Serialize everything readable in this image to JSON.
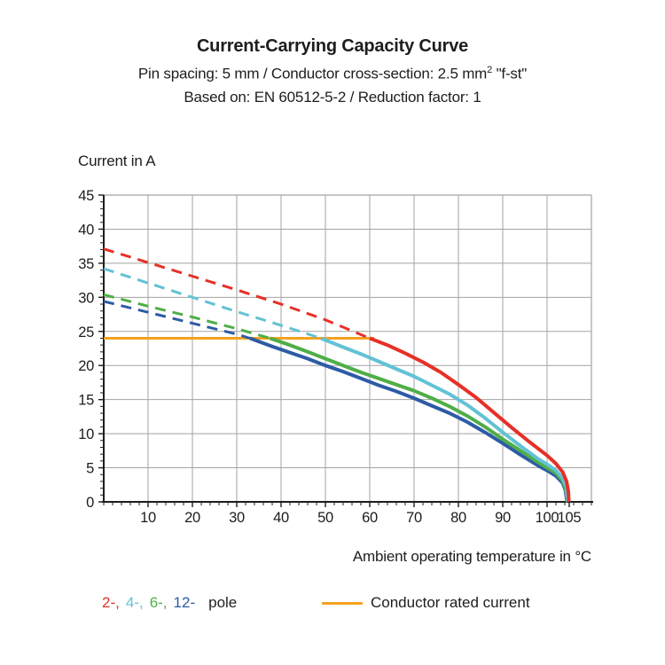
{
  "header": {
    "title": "Current-Carrying Capacity Curve",
    "subtitle_pre": "Pin spacing: 5 mm / Conductor cross-section: 2.5 mm",
    "subtitle_sup": "2",
    "subtitle_post": " \"f-st\"",
    "subtitle2": "Based on: EN 60512-5-2 / Reduction factor: 1"
  },
  "axes": {
    "ylabel": "Current in A",
    "xlabel": "Ambient operating temperature in °C"
  },
  "legend": {
    "pole_items": [
      {
        "label": "2-,",
        "color": "#e63027"
      },
      {
        "label": "4-,",
        "color": "#62c2d5"
      },
      {
        "label": "6-,",
        "color": "#4fae47"
      },
      {
        "label": "12-",
        "color": "#2d5ba6"
      }
    ],
    "pole_word": "pole",
    "rated_label": "Conductor rated current",
    "rated_color": "#f5a11f"
  },
  "chart_data": {
    "type": "line",
    "title": "Current-Carrying Capacity Curve",
    "xlabel": "Ambient operating temperature in °C",
    "ylabel": "Current in A",
    "xlim": [
      0,
      110
    ],
    "ylim": [
      0,
      45
    ],
    "x_major_ticks": [
      10,
      20,
      30,
      40,
      50,
      60,
      70,
      80,
      90,
      100,
      105
    ],
    "x_gridlines": [
      10,
      20,
      30,
      40,
      50,
      60,
      70,
      80,
      90,
      100
    ],
    "x_minor_step": 2,
    "y_major_ticks": [
      0,
      5,
      10,
      15,
      20,
      25,
      30,
      35,
      40,
      45
    ],
    "y_gridlines": [
      5,
      10,
      15,
      20,
      25,
      30,
      35,
      40
    ],
    "y_minor_step": 1,
    "grid_color": "#a3a3a3",
    "axis_color": "#1d1d1b",
    "legend_position": "bottom",
    "series": [
      {
        "name": "Conductor rated current",
        "color": "#f5a11f",
        "width": 3,
        "style": "solid",
        "points": [
          [
            0,
            24
          ],
          [
            61,
            24
          ]
        ]
      },
      {
        "name": "12-pole (dashed derating)",
        "color": "#2d5ba6",
        "width": 3,
        "style": "dashed",
        "points": [
          [
            0,
            29.4
          ],
          [
            10,
            27.8
          ],
          [
            20,
            26.2
          ],
          [
            30,
            24.6
          ],
          [
            33,
            24
          ]
        ]
      },
      {
        "name": "12-pole",
        "color": "#2d5ba6",
        "width": 4,
        "style": "solid",
        "points": [
          [
            33,
            24
          ],
          [
            38,
            22.8
          ],
          [
            42,
            21.9
          ],
          [
            46,
            21.0
          ],
          [
            50,
            20.0
          ],
          [
            54,
            19.1
          ],
          [
            58,
            18.1
          ],
          [
            62,
            17.1
          ],
          [
            66,
            16.2
          ],
          [
            70,
            15.2
          ],
          [
            74,
            14.1
          ],
          [
            78,
            13.0
          ],
          [
            82,
            11.7
          ],
          [
            86,
            10.2
          ],
          [
            90,
            8.6
          ],
          [
            94,
            6.9
          ],
          [
            98,
            5.3
          ],
          [
            100,
            4.6
          ],
          [
            102,
            3.8
          ],
          [
            103.5,
            2.8
          ],
          [
            104.1,
            1.8
          ],
          [
            104.5,
            0
          ]
        ]
      },
      {
        "name": "6-pole (dashed derating)",
        "color": "#4fae47",
        "width": 3,
        "style": "dashed",
        "points": [
          [
            0,
            30.4
          ],
          [
            10,
            28.7
          ],
          [
            20,
            27.1
          ],
          [
            30,
            25.4
          ],
          [
            37.5,
            24
          ]
        ]
      },
      {
        "name": "6-pole",
        "color": "#4fae47",
        "width": 4,
        "style": "solid",
        "points": [
          [
            37.5,
            24
          ],
          [
            42,
            23.0
          ],
          [
            46,
            22.0
          ],
          [
            50,
            21.0
          ],
          [
            54,
            20.0
          ],
          [
            58,
            19.0
          ],
          [
            62,
            18.1
          ],
          [
            66,
            17.2
          ],
          [
            70,
            16.3
          ],
          [
            74,
            15.2
          ],
          [
            78,
            14.0
          ],
          [
            82,
            12.6
          ],
          [
            86,
            11.0
          ],
          [
            90,
            9.2
          ],
          [
            94,
            7.5
          ],
          [
            98,
            5.8
          ],
          [
            100,
            5.0
          ],
          [
            102,
            4.2
          ],
          [
            103.5,
            3.1
          ],
          [
            104.2,
            2.0
          ],
          [
            104.6,
            0
          ]
        ]
      },
      {
        "name": "4-pole (dashed derating)",
        "color": "#62c2d5",
        "width": 3,
        "style": "dashed",
        "points": [
          [
            0,
            34.2
          ],
          [
            10,
            32.1
          ],
          [
            20,
            30.0
          ],
          [
            30,
            27.9
          ],
          [
            40,
            25.9
          ],
          [
            49,
            24
          ]
        ]
      },
      {
        "name": "4-pole",
        "color": "#62c2d5",
        "width": 4,
        "style": "solid",
        "points": [
          [
            49,
            24
          ],
          [
            54,
            22.7
          ],
          [
            58,
            21.7
          ],
          [
            62,
            20.6
          ],
          [
            66,
            19.5
          ],
          [
            70,
            18.4
          ],
          [
            74,
            17.1
          ],
          [
            78,
            15.8
          ],
          [
            82,
            14.2
          ],
          [
            86,
            12.3
          ],
          [
            90,
            10.2
          ],
          [
            94,
            8.2
          ],
          [
            98,
            6.3
          ],
          [
            100,
            5.5
          ],
          [
            102,
            4.6
          ],
          [
            103.5,
            3.5
          ],
          [
            104.3,
            2.2
          ],
          [
            104.7,
            0
          ]
        ]
      },
      {
        "name": "2-pole (dashed derating)",
        "color": "#e63027",
        "width": 3,
        "style": "dashed",
        "points": [
          [
            0,
            37.1
          ],
          [
            10,
            35.1
          ],
          [
            20,
            33.1
          ],
          [
            30,
            31.1
          ],
          [
            40,
            29.0
          ],
          [
            50,
            26.7
          ],
          [
            60,
            24
          ]
        ]
      },
      {
        "name": "2-pole",
        "color": "#e63027",
        "width": 4,
        "style": "solid",
        "points": [
          [
            60,
            24
          ],
          [
            64,
            23.0
          ],
          [
            68,
            21.8
          ],
          [
            72,
            20.5
          ],
          [
            76,
            19.0
          ],
          [
            80,
            17.2
          ],
          [
            84,
            15.3
          ],
          [
            88,
            13.1
          ],
          [
            92,
            10.9
          ],
          [
            96,
            8.8
          ],
          [
            100,
            6.8
          ],
          [
            102,
            5.6
          ],
          [
            103.5,
            4.4
          ],
          [
            104.4,
            3.0
          ],
          [
            104.8,
            1.5
          ],
          [
            104.9,
            0
          ]
        ]
      }
    ]
  }
}
